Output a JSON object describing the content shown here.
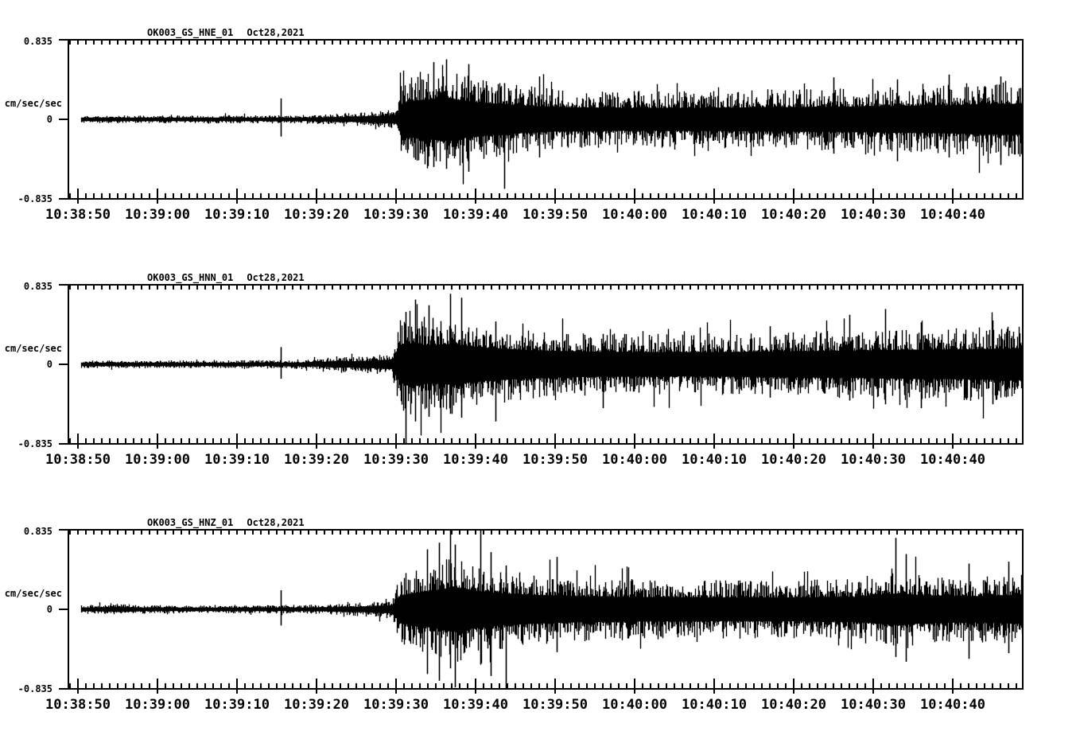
{
  "page": {
    "background": "#ffffff",
    "trace_color": "#000000"
  },
  "chart_data": [
    {
      "type": "line",
      "station_channel": "OK003_GS_HNE_01",
      "date": "Oct28,2021",
      "ylabel": "cm/sec/sec",
      "ytick_labels": [
        "0.835",
        "0",
        "-0.835"
      ],
      "ylim": [
        -0.835,
        0.835
      ],
      "xtick_labels": [
        "10:38:50",
        "10:39:00",
        "10:39:10",
        "10:39:20",
        "10:39:30",
        "10:39:40",
        "10:39:50",
        "10:40:00",
        "10:40:10",
        "10:40:20",
        "10:40:30",
        "10:40:40"
      ],
      "x_seconds_per_major_tick": 10,
      "time_span_seconds": 120,
      "grid": false,
      "legend": "none",
      "envelope": [
        [
          -1.2,
          0.042
        ],
        [
          8,
          0.04
        ],
        [
          18,
          0.044
        ],
        [
          24,
          0.042
        ],
        [
          28,
          0.046
        ],
        [
          32,
          0.055
        ],
        [
          35,
          0.068
        ],
        [
          38,
          0.09
        ],
        [
          40,
          0.115
        ],
        [
          40.6,
          0.4
        ],
        [
          41.5,
          0.47
        ],
        [
          43,
          0.5
        ],
        [
          45,
          0.54
        ],
        [
          46.5,
          0.57
        ],
        [
          48,
          0.5
        ],
        [
          50,
          0.45
        ],
        [
          53,
          0.4
        ],
        [
          56,
          0.36
        ],
        [
          60,
          0.32
        ],
        [
          68,
          0.3
        ],
        [
          78,
          0.3
        ],
        [
          88,
          0.32
        ],
        [
          96,
          0.33
        ],
        [
          104,
          0.35
        ],
        [
          110,
          0.37
        ],
        [
          114,
          0.4
        ],
        [
          118.8,
          0.41
        ]
      ],
      "spikes": [
        [
          25.5,
          0.22,
          0.18
        ],
        [
          44.7,
          0.6,
          0.5
        ],
        [
          46.3,
          0.63,
          0.52
        ],
        [
          49.1,
          0.58,
          0.55
        ],
        [
          53.6,
          0.38,
          0.73
        ],
        [
          58,
          0.45,
          0.4
        ],
        [
          95,
          0.44,
          0.36
        ],
        [
          103,
          0.42,
          0.44
        ],
        [
          109.5,
          0.47,
          0.4
        ],
        [
          116,
          0.45,
          0.48
        ]
      ],
      "seed": 101
    },
    {
      "type": "line",
      "station_channel": "OK003_GS_HNN_01",
      "date": "Oct28,2021",
      "ylabel": "cm/sec/sec",
      "ytick_labels": [
        "0.835",
        "0",
        "-0.835"
      ],
      "ylim": [
        -0.835,
        0.835
      ],
      "xtick_labels": [
        "10:38:50",
        "10:39:00",
        "10:39:10",
        "10:39:20",
        "10:39:30",
        "10:39:40",
        "10:39:50",
        "10:40:00",
        "10:40:10",
        "10:40:20",
        "10:40:30",
        "10:40:40"
      ],
      "x_seconds_per_major_tick": 10,
      "time_span_seconds": 120,
      "grid": false,
      "legend": "none",
      "envelope": [
        [
          -1.2,
          0.04
        ],
        [
          10,
          0.04
        ],
        [
          20,
          0.042
        ],
        [
          26,
          0.046
        ],
        [
          30,
          0.055
        ],
        [
          33,
          0.09
        ],
        [
          35,
          0.08
        ],
        [
          37,
          0.095
        ],
        [
          39.5,
          0.12
        ],
        [
          40.4,
          0.48
        ],
        [
          41.5,
          0.56
        ],
        [
          43,
          0.52
        ],
        [
          45,
          0.5
        ],
        [
          47,
          0.54
        ],
        [
          49,
          0.48
        ],
        [
          52,
          0.42
        ],
        [
          56,
          0.38
        ],
        [
          61,
          0.34
        ],
        [
          70,
          0.32
        ],
        [
          80,
          0.32
        ],
        [
          90,
          0.34
        ],
        [
          98,
          0.36
        ],
        [
          104,
          0.38
        ],
        [
          112,
          0.39
        ],
        [
          118.8,
          0.42
        ]
      ],
      "spikes": [
        [
          25.5,
          0.18,
          0.15
        ],
        [
          41.2,
          0.55,
          0.92
        ],
        [
          42.4,
          0.68,
          0.6
        ],
        [
          44.1,
          0.62,
          0.55
        ],
        [
          46.8,
          0.74,
          0.52
        ],
        [
          48.2,
          0.7,
          0.56
        ],
        [
          52.5,
          0.45,
          0.6
        ],
        [
          66,
          0.32,
          0.46
        ],
        [
          87,
          0.4,
          0.35
        ],
        [
          97,
          0.52,
          0.38
        ],
        [
          101.5,
          0.58,
          0.42
        ],
        [
          106,
          0.44,
          0.46
        ],
        [
          115,
          0.46,
          0.42
        ]
      ],
      "seed": 202
    },
    {
      "type": "line",
      "station_channel": "OK003_GS_HNZ_01",
      "date": "Oct28,2021",
      "ylabel": "cm/sec/sec",
      "ytick_labels": [
        "0.835",
        "0",
        "-0.835"
      ],
      "ylim": [
        -0.835,
        0.835
      ],
      "xtick_labels": [
        "10:38:50",
        "10:39:00",
        "10:39:10",
        "10:39:20",
        "10:39:30",
        "10:39:40",
        "10:39:50",
        "10:40:00",
        "10:40:10",
        "10:40:20",
        "10:40:30",
        "10:40:40"
      ],
      "x_seconds_per_major_tick": 10,
      "time_span_seconds": 120,
      "grid": false,
      "legend": "none",
      "envelope": [
        [
          -1.2,
          0.042
        ],
        [
          3,
          0.052
        ],
        [
          5.5,
          0.058
        ],
        [
          8,
          0.048
        ],
        [
          13,
          0.04
        ],
        [
          20,
          0.042
        ],
        [
          26,
          0.046
        ],
        [
          30,
          0.05
        ],
        [
          34,
          0.062
        ],
        [
          37,
          0.082
        ],
        [
          39.5,
          0.105
        ],
        [
          40.5,
          0.36
        ],
        [
          42,
          0.42
        ],
        [
          44,
          0.47
        ],
        [
          46,
          0.54
        ],
        [
          47.5,
          0.58
        ],
        [
          49,
          0.52
        ],
        [
          51,
          0.46
        ],
        [
          54,
          0.41
        ],
        [
          58,
          0.37
        ],
        [
          63,
          0.34
        ],
        [
          70,
          0.32
        ],
        [
          80,
          0.31
        ],
        [
          90,
          0.31
        ],
        [
          98,
          0.33
        ],
        [
          101.5,
          0.4
        ],
        [
          103.5,
          0.42
        ],
        [
          106,
          0.37
        ],
        [
          110,
          0.35
        ],
        [
          114,
          0.35
        ],
        [
          118.8,
          0.385
        ]
      ],
      "spikes": [
        [
          25.5,
          0.2,
          0.17
        ],
        [
          43.9,
          0.63,
          0.68
        ],
        [
          45.4,
          0.7,
          0.75
        ],
        [
          46.8,
          0.83,
          0.62
        ],
        [
          47.4,
          0.68,
          0.82
        ],
        [
          50.6,
          0.835,
          0.58
        ],
        [
          51.9,
          0.6,
          0.7
        ],
        [
          53.8,
          0.46,
          0.835
        ],
        [
          60.2,
          0.55,
          0.45
        ],
        [
          102.8,
          0.75,
          0.5
        ],
        [
          104.1,
          0.58,
          0.55
        ],
        [
          112,
          0.48,
          0.52
        ],
        [
          117,
          0.5,
          0.46
        ]
      ],
      "seed": 303
    }
  ]
}
